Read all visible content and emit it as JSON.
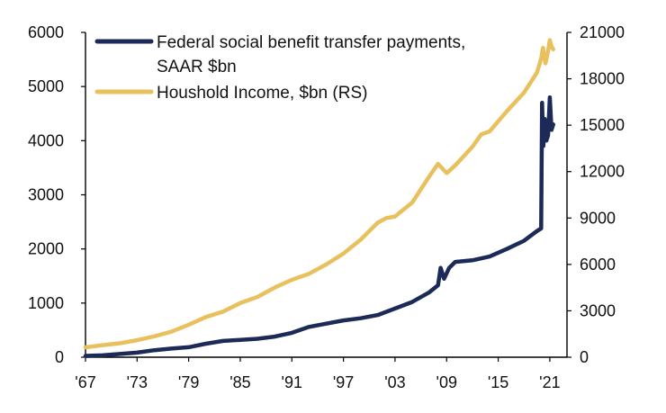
{
  "chart_data": {
    "type": "line",
    "title": "",
    "xlabel": "",
    "ylabel_left": "",
    "ylabel_right": "",
    "grid": false,
    "legend_position": "top-left",
    "x_range": [
      1967,
      2023
    ],
    "x_ticks": [
      1967,
      1973,
      1979,
      1985,
      1991,
      1997,
      2003,
      2009,
      2015,
      2021
    ],
    "x_tick_labels": [
      "'67",
      "'73",
      "'79",
      "'85",
      "'91",
      "'97",
      "'03",
      "'09",
      "'15",
      "'21"
    ],
    "y_left": {
      "range": [
        0,
        6000
      ],
      "ticks": [
        0,
        1000,
        2000,
        3000,
        4000,
        5000,
        6000
      ],
      "tick_labels": [
        "0",
        "1000",
        "2000",
        "3000",
        "4000",
        "5000",
        "6000"
      ]
    },
    "y_right": {
      "range": [
        0,
        21000
      ],
      "ticks": [
        0,
        3000,
        6000,
        9000,
        12000,
        15000,
        18000,
        21000
      ],
      "tick_labels": [
        "0",
        "3000",
        "6000",
        "9000",
        "12000",
        "15000",
        "18000",
        "21000"
      ]
    },
    "series": [
      {
        "name": "Federal social benefit transfer payments, SAAR $bn",
        "name_line1": "Federal social benefit transfer payments,",
        "name_line2": "SAAR $bn",
        "axis": "left",
        "color": "#1b2a57",
        "points": [
          [
            1967,
            25
          ],
          [
            1969,
            35
          ],
          [
            1971,
            60
          ],
          [
            1973,
            85
          ],
          [
            1975,
            130
          ],
          [
            1977,
            160
          ],
          [
            1979,
            185
          ],
          [
            1981,
            250
          ],
          [
            1983,
            300
          ],
          [
            1985,
            320
          ],
          [
            1987,
            340
          ],
          [
            1989,
            380
          ],
          [
            1991,
            450
          ],
          [
            1993,
            560
          ],
          [
            1995,
            620
          ],
          [
            1997,
            680
          ],
          [
            1999,
            720
          ],
          [
            2001,
            780
          ],
          [
            2003,
            900
          ],
          [
            2005,
            1020
          ],
          [
            2007,
            1200
          ],
          [
            2008,
            1330
          ],
          [
            2008.3,
            1650
          ],
          [
            2008.7,
            1450
          ],
          [
            2009.3,
            1650
          ],
          [
            2010,
            1760
          ],
          [
            2012,
            1790
          ],
          [
            2014,
            1860
          ],
          [
            2016,
            2000
          ],
          [
            2018,
            2150
          ],
          [
            2019.5,
            2330
          ],
          [
            2020,
            2380
          ],
          [
            2020.1,
            4700
          ],
          [
            2020.25,
            3900
          ],
          [
            2020.4,
            4400
          ],
          [
            2020.6,
            4000
          ],
          [
            2020.8,
            4100
          ],
          [
            2021,
            4800
          ],
          [
            2021.2,
            4200
          ],
          [
            2021.4,
            4300
          ]
        ]
      },
      {
        "name": "Houshold Income, $bn (RS)",
        "axis": "right",
        "color": "#e8c15e",
        "points": [
          [
            1967,
            640
          ],
          [
            1969,
            780
          ],
          [
            1971,
            900
          ],
          [
            1973,
            1100
          ],
          [
            1975,
            1350
          ],
          [
            1977,
            1650
          ],
          [
            1979,
            2100
          ],
          [
            1981,
            2600
          ],
          [
            1983,
            2950
          ],
          [
            1985,
            3500
          ],
          [
            1987,
            3900
          ],
          [
            1989,
            4500
          ],
          [
            1991,
            5000
          ],
          [
            1993,
            5400
          ],
          [
            1995,
            6000
          ],
          [
            1997,
            6700
          ],
          [
            1999,
            7600
          ],
          [
            2001,
            8700
          ],
          [
            2002,
            9000
          ],
          [
            2003,
            9100
          ],
          [
            2005,
            10000
          ],
          [
            2007,
            11700
          ],
          [
            2008,
            12500
          ],
          [
            2009,
            11900
          ],
          [
            2010,
            12400
          ],
          [
            2012,
            13600
          ],
          [
            2013,
            14400
          ],
          [
            2014,
            14600
          ],
          [
            2016,
            15900
          ],
          [
            2018,
            17100
          ],
          [
            2019.5,
            18400
          ],
          [
            2020,
            19300
          ],
          [
            2020.2,
            20000
          ],
          [
            2020.5,
            19000
          ],
          [
            2020.8,
            19800
          ],
          [
            2021,
            20500
          ],
          [
            2021.2,
            20100
          ],
          [
            2021.4,
            19900
          ]
        ]
      }
    ]
  }
}
